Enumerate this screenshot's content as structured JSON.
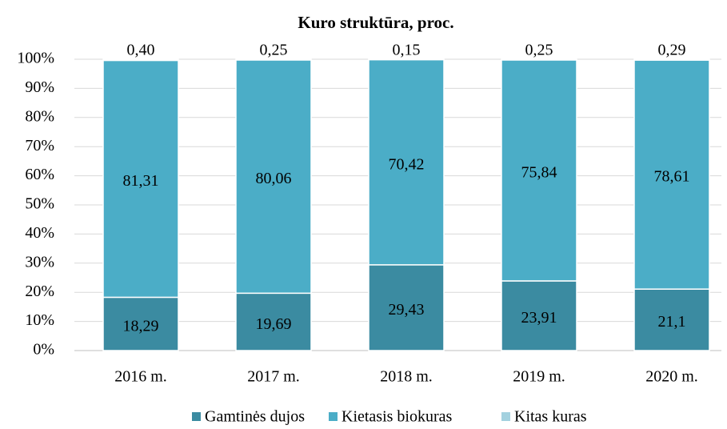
{
  "chart_data": {
    "type": "stacked_bar",
    "title": "Kuro struktūra, proc.",
    "categories": [
      "2016 m.",
      "2017 m.",
      "2018 m.",
      "2019 m.",
      "2020 m."
    ],
    "series": [
      {
        "name": "Gamtinės dujos",
        "color": "#3b8ba1",
        "values": [
          18.29,
          19.69,
          29.43,
          23.91,
          21.1
        ],
        "value_labels": [
          "18,29",
          "19,69",
          "29,43",
          "23,91",
          "21,1"
        ]
      },
      {
        "name": "Kietasis biokuras",
        "color": "#4badc7",
        "values": [
          81.31,
          80.06,
          70.42,
          75.84,
          78.61
        ],
        "value_labels": [
          "81,31",
          "80,06",
          "70,42",
          "75,84",
          "78,61"
        ]
      },
      {
        "name": "Kitas kuras",
        "color": "#a3d1df",
        "values": [
          0.4,
          0.25,
          0.15,
          0.25,
          0.29
        ],
        "value_labels": [
          "0,40",
          "0,25",
          "0,15",
          "0,25",
          "0,29"
        ]
      }
    ],
    "ylim": [
      0,
      100
    ],
    "yticks": [
      {
        "value": 0,
        "label": "0%"
      },
      {
        "value": 10,
        "label": "10%"
      },
      {
        "value": 20,
        "label": "20%"
      },
      {
        "value": 30,
        "label": "30%"
      },
      {
        "value": 40,
        "label": "40%"
      },
      {
        "value": 50,
        "label": "50%"
      },
      {
        "value": 60,
        "label": "60%"
      },
      {
        "value": 70,
        "label": "70%"
      },
      {
        "value": 80,
        "label": "80%"
      },
      {
        "value": 90,
        "label": "90%"
      },
      {
        "value": 100,
        "label": "100%"
      }
    ],
    "grid": true,
    "legend": "bottom"
  }
}
